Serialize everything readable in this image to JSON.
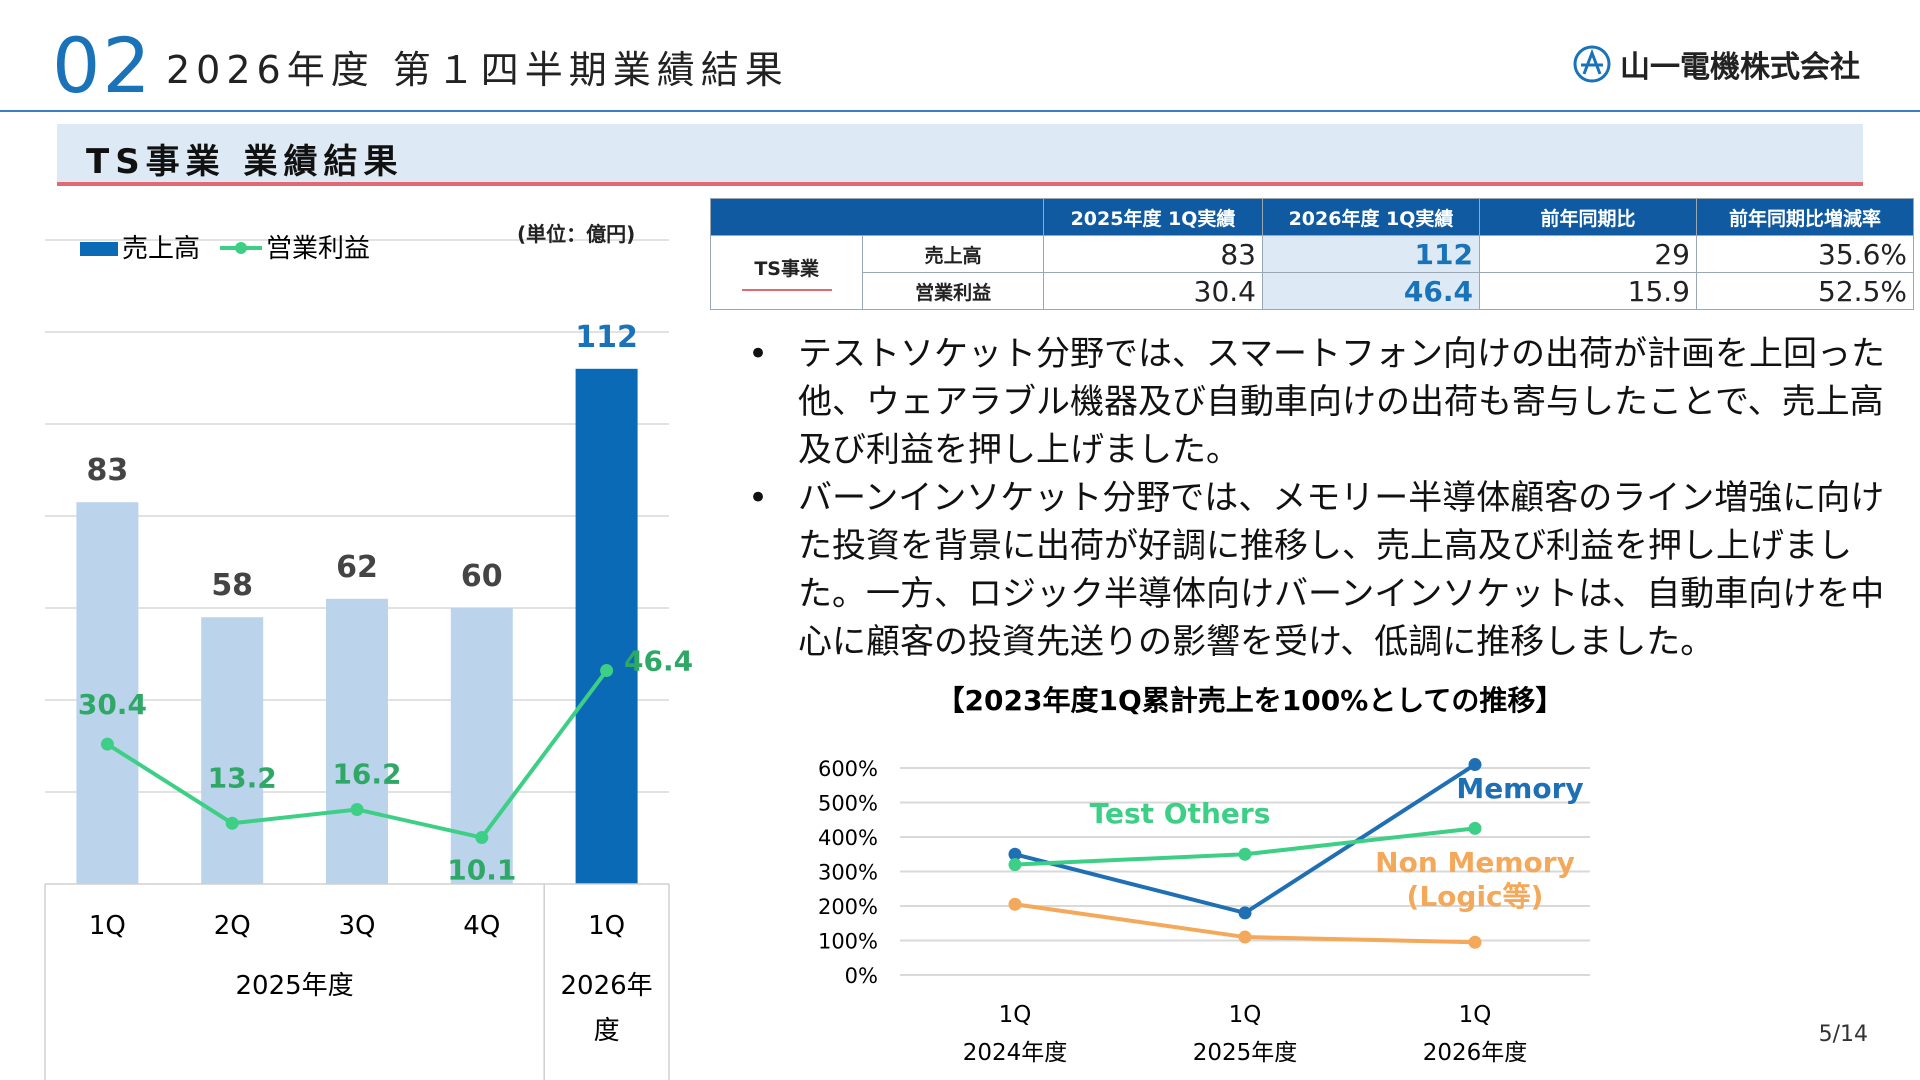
{
  "header": {
    "section_number": "02",
    "title": "2026年度 第１四半期業績結果",
    "company": "山一電機株式会社"
  },
  "section": {
    "title": "TS事業 業績結果"
  },
  "unit_note": "(単位：億円)",
  "table": {
    "headers": [
      "",
      "",
      "2025年度 1Q実績",
      "2026年度 1Q実績",
      "前年同期比",
      "前年同期比増減率"
    ],
    "segment": "TS事業",
    "rows": [
      {
        "label": "売上高",
        "prev": "83",
        "curr": "112",
        "diff": "29",
        "rate": "35.6%"
      },
      {
        "label": "営業利益",
        "prev": "30.4",
        "curr": "46.4",
        "diff": "15.9",
        "rate": "52.5%"
      }
    ]
  },
  "bullets": [
    "テストソケット分野では、スマートフォン向けの出荷が計画を上回った他、ウェアラブル機器及び自動車向けの出荷も寄与したことで、売上高及び利益を押し上げました。",
    "バーンインソケット分野では、メモリー半導体顧客のライン増強に向けた投資を背景に出荷が好調に推移し、売上高及び利益を押し上げました。一方、ロジック半導体向けバーンインソケットは、自動車向けを中心に顧客の投資先送りの影響を受け、低調に推移しました。"
  ],
  "page_number": "5/14",
  "chart_data": [
    {
      "type": "bar",
      "categories": [
        "1Q",
        "2Q",
        "3Q",
        "4Q",
        "1Q"
      ],
      "groups": [
        {
          "label": "2025年度",
          "span": 4
        },
        {
          "label": "2026年度",
          "span": 1
        }
      ],
      "series": [
        {
          "name": "売上高",
          "type": "bar",
          "values": [
            83,
            58,
            62,
            60,
            112
          ]
        },
        {
          "name": "営業利益",
          "type": "line",
          "values": [
            30.4,
            13.2,
            16.2,
            10.1,
            46.4
          ]
        }
      ],
      "value_labels": {
        "sales": [
          "83",
          "58",
          "62",
          "60",
          "112"
        ],
        "profit": [
          "30.4",
          "13.2",
          "16.2",
          "10.1",
          "46.4"
        ]
      },
      "ylim": [
        0,
        120
      ],
      "grid": true,
      "legend_position": "top-left",
      "colors": {
        "bar": "#bcd3ec",
        "bar_highlight": "#0b6ab5",
        "line": "#3ecf86",
        "profit_label": "#2fa867",
        "sales_highlight_label": "#1a73b8"
      }
    },
    {
      "type": "line",
      "title": "【2023年度1Q累計売上を100%としての推移】",
      "categories": [
        "1Q",
        "1Q",
        "1Q"
      ],
      "category_groups": [
        "2024年度",
        "2025年度",
        "2026年度"
      ],
      "y_ticks": [
        "600%",
        "500%",
        "400%",
        "300%",
        "200%",
        "100%",
        "0%"
      ],
      "ylim": [
        0,
        600
      ],
      "grid": true,
      "series": [
        {
          "name": "Memory",
          "values": [
            350,
            180,
            610
          ],
          "color": "#1f6fb5"
        },
        {
          "name": "Test Others",
          "values": [
            320,
            350,
            425
          ],
          "color": "#3ecf86"
        },
        {
          "name": "Non Memory",
          "name_line2": "(Logic等)",
          "values": [
            205,
            110,
            95
          ],
          "color": "#f4a85a"
        }
      ]
    }
  ]
}
